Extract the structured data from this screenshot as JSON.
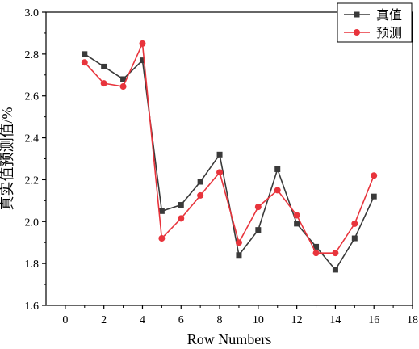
{
  "chart_data": {
    "type": "line",
    "title": "",
    "xlabel": "Row Numbers",
    "ylabel": "真实值预测值/%",
    "xlim": [
      -1,
      18
    ],
    "ylim": [
      1.6,
      3.0
    ],
    "xticks": [
      0,
      2,
      4,
      6,
      8,
      10,
      12,
      14,
      16,
      18
    ],
    "yticks": [
      1.6,
      1.8,
      2.0,
      2.2,
      2.4,
      2.6,
      2.8,
      3.0
    ],
    "xtick_labels": [
      "0",
      "2",
      "4",
      "6",
      "8",
      "10",
      "12",
      "14",
      "16",
      "18"
    ],
    "ytick_labels": [
      "1.6",
      "1.8",
      "2.0",
      "2.2",
      "2.4",
      "2.6",
      "2.8",
      "3.0"
    ],
    "grid": false,
    "legend_position": "top-right",
    "x": [
      1,
      2,
      3,
      4,
      5,
      6,
      7,
      8,
      9,
      10,
      11,
      12,
      13,
      14,
      15,
      16
    ],
    "series": [
      {
        "name": "真值",
        "color": "#3a3a3a",
        "marker": "square",
        "values": [
          2.8,
          2.74,
          2.68,
          2.77,
          2.05,
          2.08,
          2.19,
          2.32,
          1.84,
          1.96,
          2.25,
          1.99,
          1.88,
          1.77,
          1.92,
          2.12
        ]
      },
      {
        "name": "预测",
        "color": "#e8343c",
        "marker": "circle",
        "values": [
          2.76,
          2.66,
          2.645,
          2.85,
          1.92,
          2.015,
          2.125,
          2.235,
          1.9,
          2.07,
          2.15,
          2.03,
          1.85,
          1.85,
          1.99,
          2.22
        ]
      }
    ]
  }
}
